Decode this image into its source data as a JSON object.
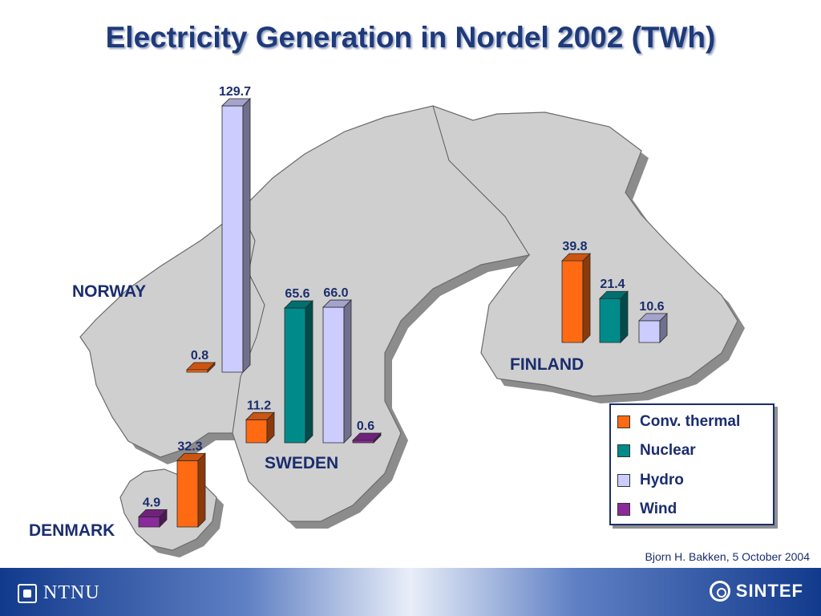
{
  "title": "Electricity Generation in Nordel 2002 (TWh)",
  "credit": "Bjorn H. Bakken, 5 October 2004",
  "footer": {
    "left_logo": "NTNU",
    "right_logo": "SINTEF"
  },
  "chart_data": {
    "type": "bar",
    "title": "Electricity Generation in Nordel 2002 (TWh)",
    "unit": "TWh",
    "legend_position": "bottom-right",
    "series_colors": {
      "Conv. thermal": "#ff6a13",
      "Nuclear": "#008b8b",
      "Hydro": "#ccccff",
      "Wind": "#8b2b9b"
    },
    "legend": [
      "Conv. thermal",
      "Nuclear",
      "Hydro",
      "Wind"
    ],
    "countries": [
      {
        "name": "NORWAY",
        "bars": [
          {
            "series": "Hydro",
            "value": 129.7,
            "label": "129.7"
          },
          {
            "series": "Conv. thermal",
            "value": 0.8,
            "label": "0.8"
          }
        ]
      },
      {
        "name": "SWEDEN",
        "bars": [
          {
            "series": "Conv. thermal",
            "value": 11.2,
            "label": "11.2"
          },
          {
            "series": "Nuclear",
            "value": 65.6,
            "label": "65.6"
          },
          {
            "series": "Hydro",
            "value": 66.0,
            "label": "66.0"
          },
          {
            "series": "Wind",
            "value": 0.6,
            "label": "0.6"
          }
        ]
      },
      {
        "name": "FINLAND",
        "bars": [
          {
            "series": "Conv. thermal",
            "value": 39.8,
            "label": "39.8"
          },
          {
            "series": "Nuclear",
            "value": 21.4,
            "label": "21.4"
          },
          {
            "series": "Hydro",
            "value": 10.6,
            "label": "10.6"
          }
        ]
      },
      {
        "name": "DENMARK",
        "bars": [
          {
            "series": "Wind",
            "value": 4.9,
            "label": "4.9"
          },
          {
            "series": "Conv. thermal",
            "value": 32.3,
            "label": "32.3"
          }
        ]
      }
    ]
  }
}
